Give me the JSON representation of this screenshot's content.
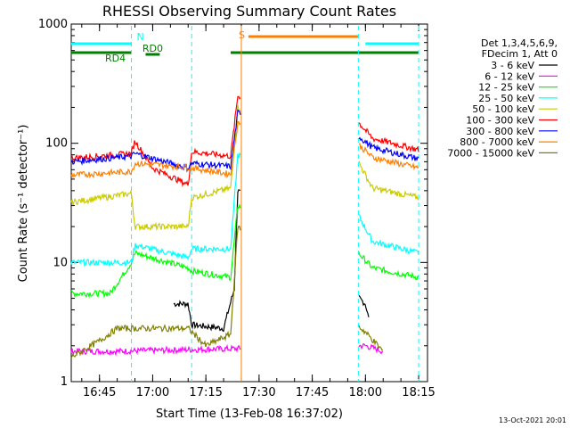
{
  "chart_data": {
    "type": "line",
    "title": "RHESSI Observing Summary Count Rates",
    "xlabel": "Start Time (13-Feb-08 16:37:02)",
    "ylabel": "Count Rate (s⁻¹ detector⁻¹)",
    "yscale": "log",
    "ylim": [
      1,
      1000
    ],
    "xlim": [
      "16:37:02",
      "18:17:30"
    ],
    "x_ticks": [
      "16:45",
      "17:00",
      "17:15",
      "17:30",
      "17:45",
      "18:00",
      "18:15"
    ],
    "y_ticks": [
      "1",
      "10",
      "100",
      "1000"
    ],
    "grid": false,
    "legend_position": "right",
    "legend_header": [
      "Det 1,3,4,5,6,9,",
      "FDecim 1, Att 0"
    ],
    "series": [
      {
        "name": "3 - 6 keV",
        "color": "#000000",
        "points": [
          [
            "17:06",
            4.5
          ],
          [
            "17:10",
            4.5
          ],
          [
            "17:11",
            3.0
          ],
          [
            "17:20",
            2.8
          ],
          [
            "17:23",
            6
          ],
          [
            "17:24",
            40
          ],
          [
            "18:00",
            4.5
          ],
          [
            "18:01",
            3.3
          ]
        ]
      },
      {
        "name": "6 - 12 keV",
        "color": "#ff00ff",
        "points": [
          [
            "16:37",
            1.8
          ],
          [
            "16:50",
            1.8
          ],
          [
            "18:00",
            2.0
          ],
          [
            "18:05",
            1.8
          ]
        ]
      },
      {
        "name": "12 - 25 keV",
        "color": "#00ff00",
        "points": [
          [
            "16:37",
            5.5
          ],
          [
            "16:48",
            5.5
          ],
          [
            "16:54",
            10
          ],
          [
            "16:55",
            12
          ],
          [
            "17:10",
            9
          ],
          [
            "17:11",
            8.5
          ],
          [
            "17:22",
            7.5
          ],
          [
            "17:24",
            30
          ],
          [
            "17:58",
            12
          ],
          [
            "18:02",
            9
          ],
          [
            "18:15",
            7.5
          ]
        ]
      },
      {
        "name": "25 - 50 keV",
        "color": "#00ffff",
        "points": [
          [
            "16:37",
            10
          ],
          [
            "16:54",
            10
          ],
          [
            "16:55",
            14
          ],
          [
            "17:10",
            11
          ],
          [
            "17:11",
            13
          ],
          [
            "17:22",
            13
          ],
          [
            "17:24",
            80
          ],
          [
            "17:58",
            25
          ],
          [
            "18:02",
            15
          ],
          [
            "18:15",
            12
          ]
        ]
      },
      {
        "name": "50 - 100 keV",
        "color": "#cccc00",
        "points": [
          [
            "16:37",
            32
          ],
          [
            "16:54",
            38
          ],
          [
            "16:55",
            20
          ],
          [
            "17:10",
            20
          ],
          [
            "17:11",
            35
          ],
          [
            "17:22",
            42
          ],
          [
            "17:24",
            200
          ],
          [
            "17:58",
            70
          ],
          [
            "18:02",
            42
          ],
          [
            "18:15",
            35
          ]
        ]
      },
      {
        "name": "100 - 300 keV",
        "color": "#ff0000",
        "points": [
          [
            "16:37",
            75
          ],
          [
            "16:54",
            82
          ],
          [
            "16:55",
            105
          ],
          [
            "17:00",
            62
          ],
          [
            "17:10",
            45
          ],
          [
            "17:11",
            85
          ],
          [
            "17:22",
            78
          ],
          [
            "17:24",
            250
          ],
          [
            "17:58",
            150
          ],
          [
            "18:02",
            110
          ],
          [
            "18:15",
            88
          ]
        ]
      },
      {
        "name": "300 - 800 keV",
        "color": "#0000ff",
        "points": [
          [
            "16:37",
            70
          ],
          [
            "16:54",
            78
          ],
          [
            "16:55",
            82
          ],
          [
            "17:10",
            62
          ],
          [
            "17:11",
            68
          ],
          [
            "17:22",
            64
          ],
          [
            "17:24",
            180
          ],
          [
            "17:58",
            115
          ],
          [
            "18:02",
            92
          ],
          [
            "18:15",
            74
          ]
        ]
      },
      {
        "name": "800 - 7000 keV",
        "color": "#ff8000",
        "points": [
          [
            "16:37",
            54
          ],
          [
            "16:54",
            58
          ],
          [
            "16:55",
            68
          ],
          [
            "17:10",
            63
          ],
          [
            "17:11",
            62
          ],
          [
            "17:22",
            55
          ],
          [
            "17:24",
            150
          ],
          [
            "17:58",
            98
          ],
          [
            "18:02",
            76
          ],
          [
            "18:15",
            62
          ]
        ]
      },
      {
        "name": "7000 - 15000 keV",
        "color": "#808000",
        "points": [
          [
            "16:37",
            1.6
          ],
          [
            "16:45",
            2.2
          ],
          [
            "16:50",
            2.8
          ],
          [
            "17:10",
            2.8
          ],
          [
            "17:15",
            2.0
          ],
          [
            "17:22",
            2.5
          ],
          [
            "17:24",
            20
          ],
          [
            "18:00",
            2.6
          ],
          [
            "18:05",
            1.8
          ]
        ]
      }
    ],
    "status_bars": [
      {
        "label": "N",
        "color": "#00ffff",
        "segments": [
          [
            "16:37",
            "16:54"
          ],
          [
            "18:00",
            "18:15"
          ]
        ]
      },
      {
        "label": "S",
        "color": "#ff8000",
        "segments": [
          [
            "17:27",
            "17:58"
          ]
        ]
      },
      {
        "label": "RD0",
        "color": "#008000",
        "segments": [
          [
            "16:58",
            "17:02"
          ]
        ]
      },
      {
        "label": "RD4",
        "color": "#008000",
        "segments": [
          [
            "16:37",
            "16:54"
          ],
          [
            "17:22",
            "18:15"
          ]
        ]
      }
    ],
    "vertical_lines": [
      {
        "time": "16:54",
        "color": "#00ffff",
        "style": "dashed"
      },
      {
        "time": "17:11",
        "color": "#00ffff",
        "style": "dashed"
      },
      {
        "time": "17:25",
        "color": "#ff8000",
        "style": "solid"
      },
      {
        "time": "17:58",
        "color": "#00ffff",
        "style": "dashed"
      },
      {
        "time": "18:15",
        "color": "#00ffff",
        "style": "dashed"
      }
    ]
  },
  "footer_date": "13-Oct-2021 20:01"
}
